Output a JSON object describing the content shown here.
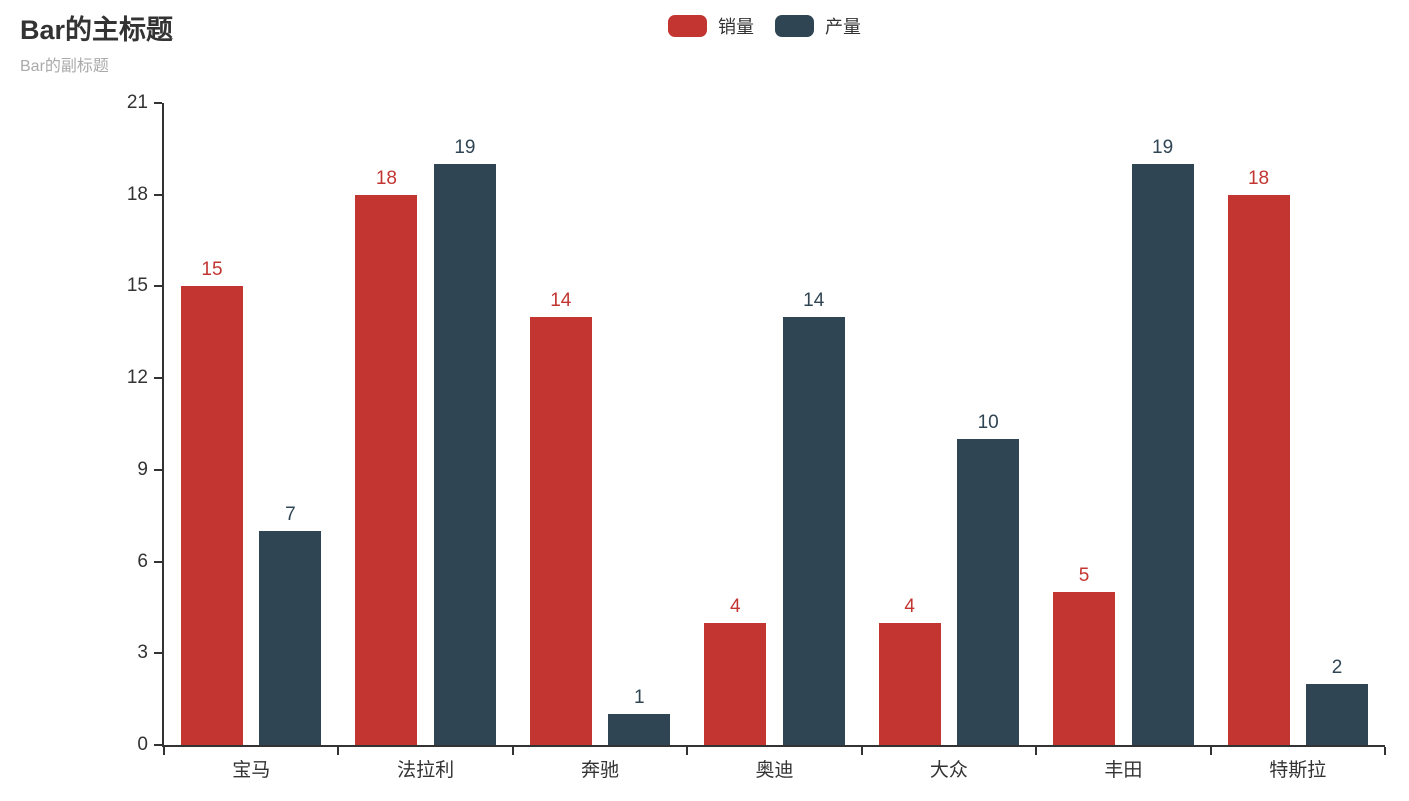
{
  "chart_data": {
    "type": "bar",
    "title": "Bar的主标题",
    "subtitle": "Bar的副标题",
    "categories": [
      "宝马",
      "法拉利",
      "奔驰",
      "奥迪",
      "大众",
      "丰田",
      "特斯拉"
    ],
    "series": [
      {
        "name": "销量",
        "color": "#c23531",
        "values": [
          15,
          18,
          14,
          4,
          4,
          5,
          18
        ]
      },
      {
        "name": "产量",
        "color": "#2f4554",
        "values": [
          7,
          19,
          1,
          14,
          10,
          19,
          2
        ]
      }
    ],
    "xlabel": "",
    "ylabel": "",
    "ylim": [
      0,
      21
    ],
    "yticks": [
      0,
      3,
      6,
      9,
      12,
      15,
      18,
      21
    ],
    "grid": false,
    "legend_position": "top-center",
    "value_labels": true,
    "axis_color": "#333333",
    "title_color": "#333333",
    "subtitle_color": "#aaaaaa"
  }
}
